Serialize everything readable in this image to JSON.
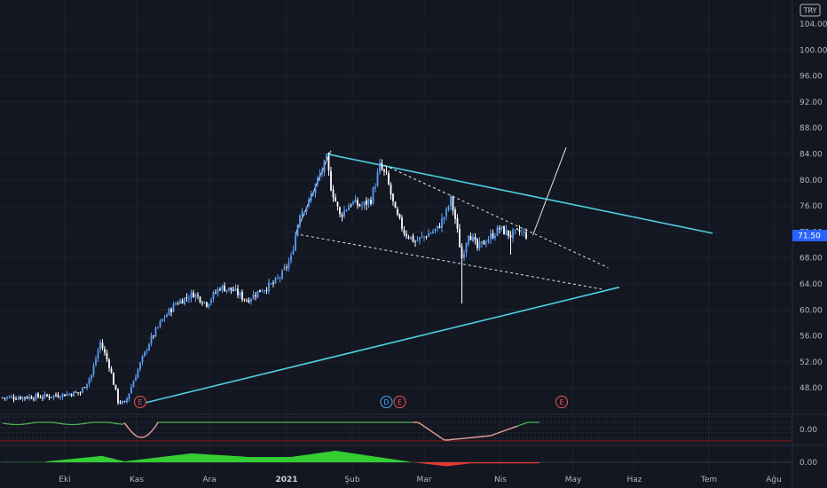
{
  "currency_label": "TRY",
  "last_price_label": "71.50",
  "colors": {
    "background": "#131722",
    "up": "#5b9cf6",
    "down": "#ffffff",
    "trendline": "#4dd0e1",
    "price_tag": "#2962ff",
    "osc_positive": "#33cc33",
    "osc_negative": "#e53935",
    "osc_line_up": "#4caf50",
    "osc_line_down": "#ef9a9a"
  },
  "chart_data": {
    "type": "candlestick",
    "y_axis": {
      "ticks": [
        "104.00",
        "100.00",
        "96.00",
        "92.00",
        "88.00",
        "84.00",
        "80.00",
        "76.00",
        "72.00",
        "68.00",
        "64.00",
        "60.00",
        "56.00",
        "52.00",
        "48.00"
      ],
      "range": [
        44,
        106
      ]
    },
    "x_axis": {
      "ticks": [
        "Eki",
        "Kas",
        "Ara",
        "2021",
        "Şub",
        "Mar",
        "Nis",
        "May",
        "Haz",
        "Tem",
        "Ağu"
      ]
    },
    "anchors": [
      {
        "d": 0,
        "p": 46.5
      },
      {
        "d": 20,
        "p": 46.7
      },
      {
        "d": 35,
        "p": 47.3
      },
      {
        "d": 40,
        "p": 50
      },
      {
        "d": 44,
        "p": 55
      },
      {
        "d": 48,
        "p": 51.5
      },
      {
        "d": 52,
        "p": 46
      },
      {
        "d": 55,
        "p": 45.5
      },
      {
        "d": 60,
        "p": 50
      },
      {
        "d": 66,
        "p": 55
      },
      {
        "d": 72,
        "p": 58.5
      },
      {
        "d": 78,
        "p": 61
      },
      {
        "d": 86,
        "p": 62.5
      },
      {
        "d": 92,
        "p": 61
      },
      {
        "d": 98,
        "p": 63.5
      },
      {
        "d": 104,
        "p": 63
      },
      {
        "d": 110,
        "p": 61.5
      },
      {
        "d": 116,
        "p": 63
      },
      {
        "d": 122,
        "p": 64
      },
      {
        "d": 126,
        "p": 65.5
      },
      {
        "d": 130,
        "p": 68
      },
      {
        "d": 134,
        "p": 75
      },
      {
        "d": 138,
        "p": 76.5
      },
      {
        "d": 142,
        "p": 80
      },
      {
        "d": 146,
        "p": 83
      },
      {
        "d": 148,
        "p": 79
      },
      {
        "d": 152,
        "p": 74.5
      },
      {
        "d": 157,
        "p": 76.5
      },
      {
        "d": 162,
        "p": 76
      },
      {
        "d": 166,
        "p": 77
      },
      {
        "d": 170,
        "p": 82
      },
      {
        "d": 173,
        "p": 80.5
      },
      {
        "d": 177,
        "p": 75
      },
      {
        "d": 181,
        "p": 72
      },
      {
        "d": 186,
        "p": 70.5
      },
      {
        "d": 191,
        "p": 71.5
      },
      {
        "d": 196,
        "p": 72.5
      },
      {
        "d": 200,
        "p": 75
      },
      {
        "d": 202,
        "p": 77
      },
      {
        "d": 204,
        "p": 74
      },
      {
        "d": 207,
        "p": 68
      },
      {
        "d": 210,
        "p": 72
      },
      {
        "d": 214,
        "p": 69.5
      },
      {
        "d": 219,
        "p": 71
      },
      {
        "d": 224,
        "p": 72.5
      },
      {
        "d": 229,
        "p": 71.5
      },
      {
        "d": 233,
        "p": 72
      },
      {
        "d": 236,
        "p": 71.5
      }
    ],
    "lows": [
      {
        "d": 207,
        "p": 61
      },
      {
        "d": 229,
        "p": 68.5
      }
    ],
    "events": [
      {
        "d": 62,
        "label": "E",
        "kind": "earnings"
      },
      {
        "d": 173,
        "label": "D",
        "kind": "dividend"
      },
      {
        "d": 179,
        "label": "E",
        "kind": "earnings"
      },
      {
        "d": 252,
        "label": "E",
        "kind": "earnings"
      }
    ],
    "trendlines": [
      {
        "from": [
          146,
          84
        ],
        "to": [
          320,
          71.8
        ],
        "style": "solid",
        "color": "trendline"
      },
      {
        "from": [
          63,
          45.6
        ],
        "to": [
          278,
          63.5
        ],
        "style": "solid",
        "color": "trendline"
      },
      {
        "from": [
          170,
          82.6
        ],
        "to": [
          273,
          66.5
        ],
        "style": "dashed",
        "color": "white"
      },
      {
        "from": [
          132,
          71.7
        ],
        "to": [
          270,
          63.2
        ],
        "style": "dashed",
        "color": "white"
      },
      {
        "from": [
          239,
          71.5
        ],
        "to": [
          254,
          85
        ],
        "style": "solid",
        "color": "white"
      },
      {
        "from": [
          132,
          71.7
        ],
        "to": [
          148,
          84.5
        ],
        "style": "solid",
        "color": "white"
      }
    ],
    "oscillator_1": {
      "zero_label": "0.00"
    },
    "oscillator_2": {
      "zero_label": "0.00"
    }
  }
}
